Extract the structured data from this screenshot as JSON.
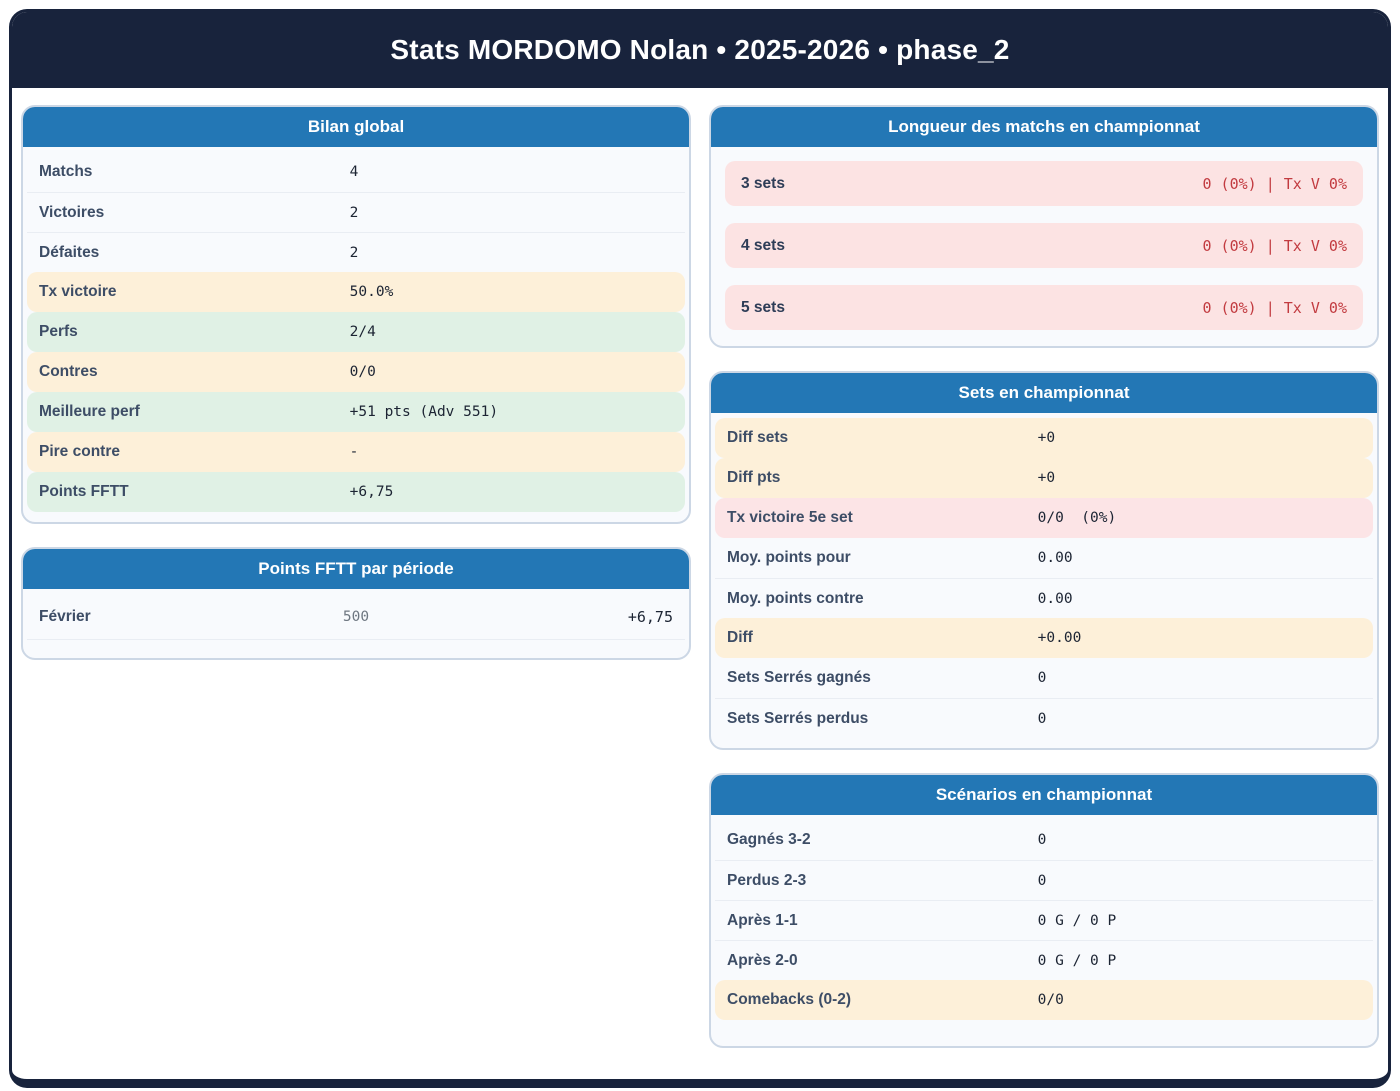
{
  "header": {
    "title": "Stats MORDOMO Nolan • 2025-2026 • phase_2"
  },
  "colors": {
    "frame_navy": "#18233c",
    "card_header_blue": "#2377b5",
    "highlight_yellow": "#fdf0d9",
    "highlight_green": "#e0f1e5",
    "highlight_pink": "#fce4e6",
    "pill_pink": "#fce3e3",
    "alert_red_text": "#c23b40",
    "label_slate": "#3d4d66",
    "value_dark": "#1c2433"
  },
  "cards": {
    "bilan": {
      "title": "Bilan global",
      "rows": [
        {
          "label": "Matchs",
          "value": "4",
          "highlight": "none"
        },
        {
          "label": "Victoires",
          "value": "2",
          "highlight": "none"
        },
        {
          "label": "Défaites",
          "value": "2",
          "highlight": "none"
        },
        {
          "label": "Tx victoire",
          "value": "50.0%",
          "highlight": "yellow"
        },
        {
          "label": "Perfs",
          "value": "2/4",
          "highlight": "green"
        },
        {
          "label": "Contres",
          "value": "0/0",
          "highlight": "yellow"
        },
        {
          "label": "Meilleure perf",
          "value": "+51 pts (Adv 551)",
          "highlight": "green"
        },
        {
          "label": "Pire contre",
          "value": "-",
          "highlight": "yellow"
        },
        {
          "label": "Points FFTT",
          "value": "+6,75",
          "highlight": "green"
        }
      ]
    },
    "periode": {
      "title": "Points FFTT par période",
      "rows": [
        {
          "label": "Février",
          "mid": "500",
          "value": "+6,75"
        }
      ]
    },
    "longueur": {
      "title": "Longueur des matchs en championnat",
      "rows": [
        {
          "label": "3 sets",
          "value": "0 (0%) | Tx V 0%"
        },
        {
          "label": "4 sets",
          "value": "0 (0%) | Tx V 0%"
        },
        {
          "label": "5 sets",
          "value": "0 (0%) | Tx V 0%"
        }
      ]
    },
    "sets": {
      "title": "Sets en championnat",
      "rows": [
        {
          "label": "Diff sets",
          "value": "+0",
          "highlight": "yellow"
        },
        {
          "label": "Diff pts",
          "value": "+0",
          "highlight": "yellow"
        },
        {
          "label": "Tx victoire 5e set",
          "value": "0/0  (0%)",
          "highlight": "pink"
        },
        {
          "label": "Moy. points pour",
          "value": "0.00",
          "highlight": "none"
        },
        {
          "label": "Moy. points contre",
          "value": "0.00",
          "highlight": "none"
        },
        {
          "label": "Diff",
          "value": "+0.00",
          "highlight": "yellow"
        },
        {
          "label": "Sets Serrés gagnés",
          "value": "0",
          "highlight": "none"
        },
        {
          "label": "Sets Serrés perdus",
          "value": "0",
          "highlight": "none"
        }
      ]
    },
    "scenarios": {
      "title": "Scénarios en championnat",
      "rows": [
        {
          "label": "Gagnés 3-2",
          "value": "0",
          "highlight": "none"
        },
        {
          "label": "Perdus 2-3",
          "value": "0",
          "highlight": "none"
        },
        {
          "label": "Après 1-1",
          "value": "0 G / 0 P",
          "highlight": "none"
        },
        {
          "label": "Après 2-0",
          "value": "0 G / 0 P",
          "highlight": "none"
        },
        {
          "label": "Comebacks (0-2)",
          "value": "0/0",
          "highlight": "yellow"
        }
      ]
    }
  }
}
